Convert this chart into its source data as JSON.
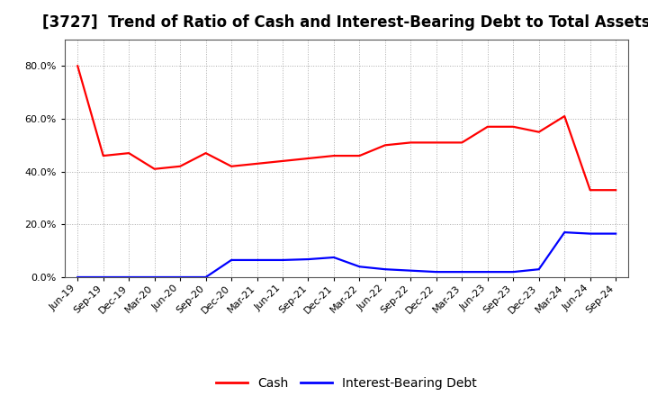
{
  "title": "[3727]  Trend of Ratio of Cash and Interest-Bearing Debt to Total Assets",
  "x_labels": [
    "Jun-19",
    "Sep-19",
    "Dec-19",
    "Mar-20",
    "Jun-20",
    "Sep-20",
    "Dec-20",
    "Mar-21",
    "Jun-21",
    "Sep-21",
    "Dec-21",
    "Mar-22",
    "Jun-22",
    "Sep-22",
    "Dec-22",
    "Mar-23",
    "Jun-23",
    "Sep-23",
    "Dec-23",
    "Mar-24",
    "Jun-24",
    "Sep-24"
  ],
  "cash": [
    0.8,
    0.46,
    0.47,
    0.41,
    0.42,
    0.47,
    0.42,
    0.43,
    0.44,
    0.45,
    0.46,
    0.46,
    0.5,
    0.51,
    0.51,
    0.51,
    0.57,
    0.57,
    0.55,
    0.61,
    0.33,
    0.33
  ],
  "debt": [
    0.0,
    0.0,
    0.0,
    0.0,
    0.0,
    0.0,
    0.065,
    0.065,
    0.065,
    0.068,
    0.075,
    0.04,
    0.03,
    0.025,
    0.02,
    0.02,
    0.02,
    0.02,
    0.03,
    0.17,
    0.165,
    0.165
  ],
  "cash_color": "#FF0000",
  "debt_color": "#0000FF",
  "background_color": "#FFFFFF",
  "plot_bg_color": "#FFFFFF",
  "grid_color": "#AAAAAA",
  "ylim": [
    0.0,
    0.9
  ],
  "yticks": [
    0.0,
    0.2,
    0.4,
    0.6,
    0.8
  ],
  "legend_cash": "Cash",
  "legend_debt": "Interest-Bearing Debt",
  "title_fontsize": 12,
  "tick_fontsize": 8,
  "legend_fontsize": 10,
  "line_width": 1.6
}
